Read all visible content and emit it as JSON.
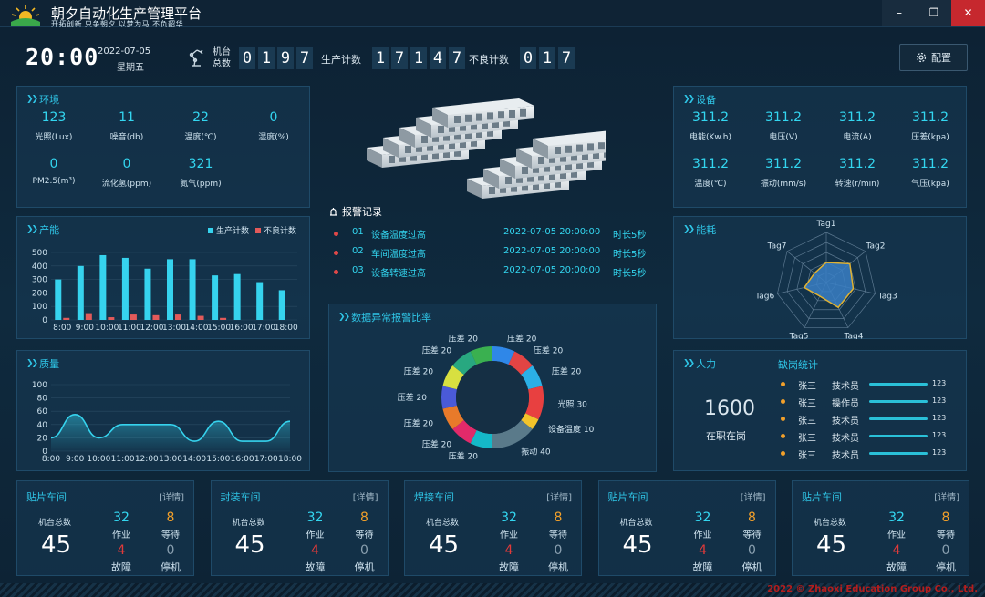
{
  "app": {
    "title": "朝夕自动化生产管理平台",
    "slogan": "开拓创新 只争朝夕 以梦为马 不负韶华",
    "window_buttons": {
      "minimize": "–",
      "maximize": "❐",
      "close": "✕"
    }
  },
  "header": {
    "time": "20:00",
    "date": "2022-07-05",
    "weekday": "星期五",
    "machine_total_label": "机台总数",
    "machine_total_digits": [
      "0",
      "1",
      "9",
      "7"
    ],
    "production_label": "生产计数",
    "production_digits": [
      "1",
      "7",
      "1",
      "4",
      "7"
    ],
    "defect_label": "不良计数",
    "defect_digits": [
      "0",
      "1",
      "7"
    ],
    "config_label": "配置"
  },
  "environment": {
    "title": "环境",
    "items": [
      {
        "value": "123",
        "label": "光照(Lux)"
      },
      {
        "value": "11",
        "label": "噪音(db)"
      },
      {
        "value": "22",
        "label": "温度(℃)"
      },
      {
        "value": "0",
        "label": "湿度(%)"
      },
      {
        "value": "0",
        "label": "PM2.5(m³)"
      },
      {
        "value": "0",
        "label": "流化氢(ppm)"
      },
      {
        "value": "321",
        "label": "氮气(ppm)"
      }
    ]
  },
  "device": {
    "title": "设备",
    "items": [
      {
        "value": "311.2",
        "label": "电能(Kw.h)"
      },
      {
        "value": "311.2",
        "label": "电压(V)"
      },
      {
        "value": "311.2",
        "label": "电流(A)"
      },
      {
        "value": "311.2",
        "label": "压差(kpa)"
      },
      {
        "value": "311.2",
        "label": "温度(℃)"
      },
      {
        "value": "311.2",
        "label": "振动(mm/s)"
      },
      {
        "value": "311.2",
        "label": "转速(r/min)"
      },
      {
        "value": "311.2",
        "label": "气压(kpa)"
      }
    ]
  },
  "capacity": {
    "title": "产能",
    "legend": [
      "生产计数",
      "不良计数"
    ]
  },
  "quality": {
    "title": "质量"
  },
  "energy": {
    "title": "能耗"
  },
  "alarms": {
    "title": "报警记录",
    "rows": [
      {
        "no": "01",
        "name": "设备温度过高",
        "time": "2022-07-05 20:00:00",
        "duration": "时长5秒"
      },
      {
        "no": "02",
        "name": "车间温度过高",
        "time": "2022-07-05 20:00:00",
        "duration": "时长5秒"
      },
      {
        "no": "03",
        "name": "设备转速过高",
        "time": "2022-07-05 20:00:00",
        "duration": "时长5秒"
      }
    ]
  },
  "anomaly": {
    "title": "数据异常报警比率"
  },
  "manpower": {
    "title": "人力",
    "total": "1600",
    "total_label": "在职在岗",
    "absence_title": "缺岗统计",
    "rows": [
      {
        "name": "张三",
        "role": "技术员",
        "value": "123"
      },
      {
        "name": "张三",
        "role": "操作员",
        "value": "123"
      },
      {
        "name": "张三",
        "role": "技术员",
        "value": "123"
      },
      {
        "name": "张三",
        "role": "技术员",
        "value": "123"
      },
      {
        "name": "张三",
        "role": "技术员",
        "value": "123"
      }
    ]
  },
  "workshops": [
    {
      "name": "贴片车间",
      "detail": "[详情]",
      "machine_label": "机台总数",
      "machine_total": "45",
      "working": "32",
      "working_label": "作业",
      "waiting": "8",
      "waiting_label": "等待",
      "fault": "4",
      "fault_label": "故障",
      "stopped": "0",
      "stopped_label": "停机"
    },
    {
      "name": "封装车间",
      "detail": "[详情]",
      "machine_label": "机台总数",
      "machine_total": "45",
      "working": "32",
      "working_label": "作业",
      "waiting": "8",
      "waiting_label": "等待",
      "fault": "4",
      "fault_label": "故障",
      "stopped": "0",
      "stopped_label": "停机"
    },
    {
      "name": "焊接车间",
      "detail": "[详情]",
      "machine_label": "机台总数",
      "machine_total": "45",
      "working": "32",
      "working_label": "作业",
      "waiting": "8",
      "waiting_label": "等待",
      "fault": "4",
      "fault_label": "故障",
      "stopped": "0",
      "stopped_label": "停机"
    },
    {
      "name": "贴片车间",
      "detail": "[详情]",
      "machine_label": "机台总数",
      "machine_total": "45",
      "working": "32",
      "working_label": "作业",
      "waiting": "8",
      "waiting_label": "等待",
      "fault": "4",
      "fault_label": "故障",
      "stopped": "0",
      "stopped_label": "停机"
    },
    {
      "name": "贴片车间",
      "detail": "[详情]",
      "machine_label": "机台总数",
      "machine_total": "45",
      "working": "32",
      "working_label": "作业",
      "waiting": "8",
      "waiting_label": "等待",
      "fault": "4",
      "fault_label": "故障",
      "stopped": "0",
      "stopped_label": "停机"
    }
  ],
  "footer": {
    "copyright": "2022 © Zhaoxi Education Group Co., Ltd."
  },
  "colors": {
    "accent": "#33d6f0",
    "alarm": "#e04848",
    "warn": "#f2a02a"
  },
  "chart_data": [
    {
      "type": "bar",
      "name": "capacity",
      "categories": [
        "8:00",
        "9:00",
        "10:00",
        "11:00",
        "12:00",
        "13:00",
        "14:00",
        "15:00",
        "16:00",
        "17:00",
        "18:00"
      ],
      "series": [
        {
          "name": "生产计数",
          "values": [
            300,
            400,
            480,
            460,
            380,
            450,
            450,
            330,
            340,
            280,
            220
          ],
          "color": "#36d3ee"
        },
        {
          "name": "不良计数",
          "values": [
            15,
            50,
            20,
            40,
            35,
            40,
            30,
            15,
            0,
            0,
            0
          ],
          "color": "#e25a5a"
        }
      ],
      "ylim": [
        0,
        500
      ],
      "yticks": [
        0,
        100,
        200,
        300,
        400,
        500
      ],
      "legend": "top-right",
      "grid": true
    },
    {
      "type": "area",
      "name": "quality",
      "categories": [
        "8:00",
        "9:00",
        "10:00",
        "11:00",
        "12:00",
        "13:00",
        "14:00",
        "15:00",
        "16:00",
        "17:00",
        "18:00"
      ],
      "values": [
        20,
        55,
        20,
        40,
        40,
        40,
        15,
        45,
        15,
        15,
        45
      ],
      "ylim": [
        0,
        100
      ],
      "yticks": [
        0,
        20,
        40,
        60,
        80,
        100
      ],
      "grid": true
    },
    {
      "type": "radar",
      "name": "energy",
      "axes": [
        "Tag1",
        "Tag2",
        "Tag3",
        "Tag4",
        "Tag5",
        "Tag6",
        "Tag7"
      ],
      "values": [
        0.4,
        0.6,
        0.55,
        0.55,
        0.3,
        0.45,
        0.3
      ],
      "max": 1
    },
    {
      "type": "pie",
      "name": "anomaly",
      "labels": [
        "压差",
        "压差",
        "压差",
        "光照",
        "设备温度",
        "振动",
        "压差",
        "压差",
        "压差",
        "压差",
        "压差",
        "压差",
        "压差"
      ],
      "values": [
        20,
        20,
        20,
        30,
        10,
        40,
        20,
        20,
        20,
        20,
        20,
        20,
        20
      ],
      "colors": [
        "#2f87e8",
        "#e24444",
        "#2bb0e6",
        "#e84040",
        "#f2c32a",
        "#5a7a8a",
        "#15b8c8",
        "#e22a6a",
        "#e87a2a",
        "#4a5ad8",
        "#d8e040",
        "#28a880",
        "#3ab050"
      ]
    }
  ]
}
